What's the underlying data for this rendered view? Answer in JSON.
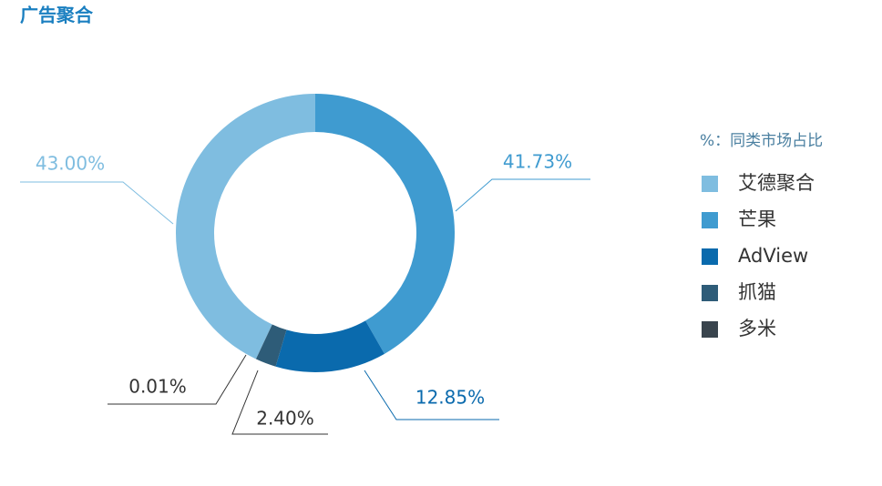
{
  "chart_data": {
    "type": "donut",
    "title": "广告聚合",
    "legend_title": "%：同类市场占比",
    "categories": [
      "艾德聚合",
      "芒果",
      "AdView",
      "抓猫",
      "多米"
    ],
    "values": [
      43.0,
      41.73,
      12.85,
      2.4,
      0.01
    ],
    "value_labels": [
      "43.00%",
      "41.73%",
      "12.85%",
      "2.40%",
      "0.01%"
    ],
    "colors": [
      "#7fbde0",
      "#3f9bd0",
      "#0a6aad",
      "#2e5c78",
      "#39444d"
    ],
    "legend": "right"
  }
}
